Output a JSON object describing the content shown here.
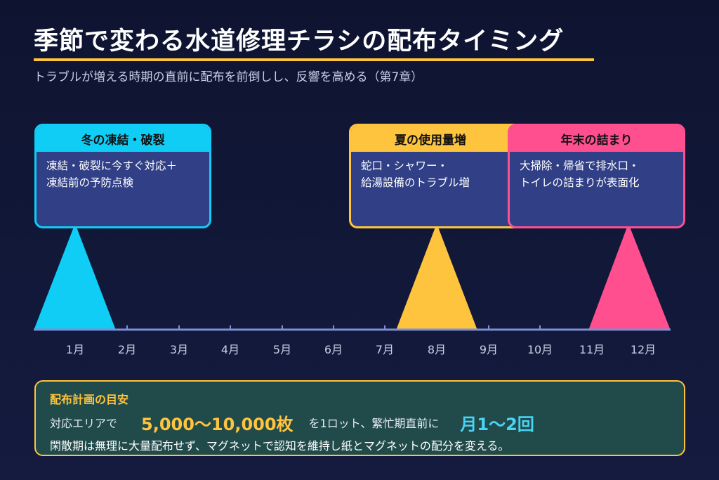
{
  "header": {
    "title": "季節で変わる水道修理チラシの配布タイミング",
    "subtitle": "トラブルが増える時期の直前に配布を前倒しし、反響を高める（第7章）"
  },
  "colors": {
    "accent_yellow": "#ffc43d",
    "winter_cyan": "#0fcdf5",
    "summer_yellow": "#ffc43d",
    "yearend_pink": "#ff4f8f",
    "axis": "#7d8fd6"
  },
  "timeline": {
    "months": [
      "1月",
      "2月",
      "3月",
      "4月",
      "5月",
      "6月",
      "7月",
      "8月",
      "9月",
      "10月",
      "11月",
      "12月"
    ]
  },
  "callouts": [
    {
      "header": "冬の凍結・破裂",
      "lines": [
        "凍結・破裂に今すぐ対応＋",
        "凍結前の予防点検"
      ]
    },
    {
      "header": "夏の使用量増",
      "lines": [
        "蛇口・シャワー・",
        "給湯設備のトラブル増"
      ]
    },
    {
      "header": "年末の詰まり",
      "lines": [
        "大掃除・帰省で排水口・",
        "トイレの詰まりが表面化"
      ]
    }
  ],
  "plan": {
    "title": "配布計画の目安",
    "text1": "対応エリアで",
    "quantity": "5,000〜10,000枚",
    "text2": "を1ロット、繁忙期直前に",
    "frequency": "月1〜2回",
    "note": "閑散期は無理に大量配布せず、マグネットで認知を維持し紙とマグネットの配分を変える。"
  }
}
